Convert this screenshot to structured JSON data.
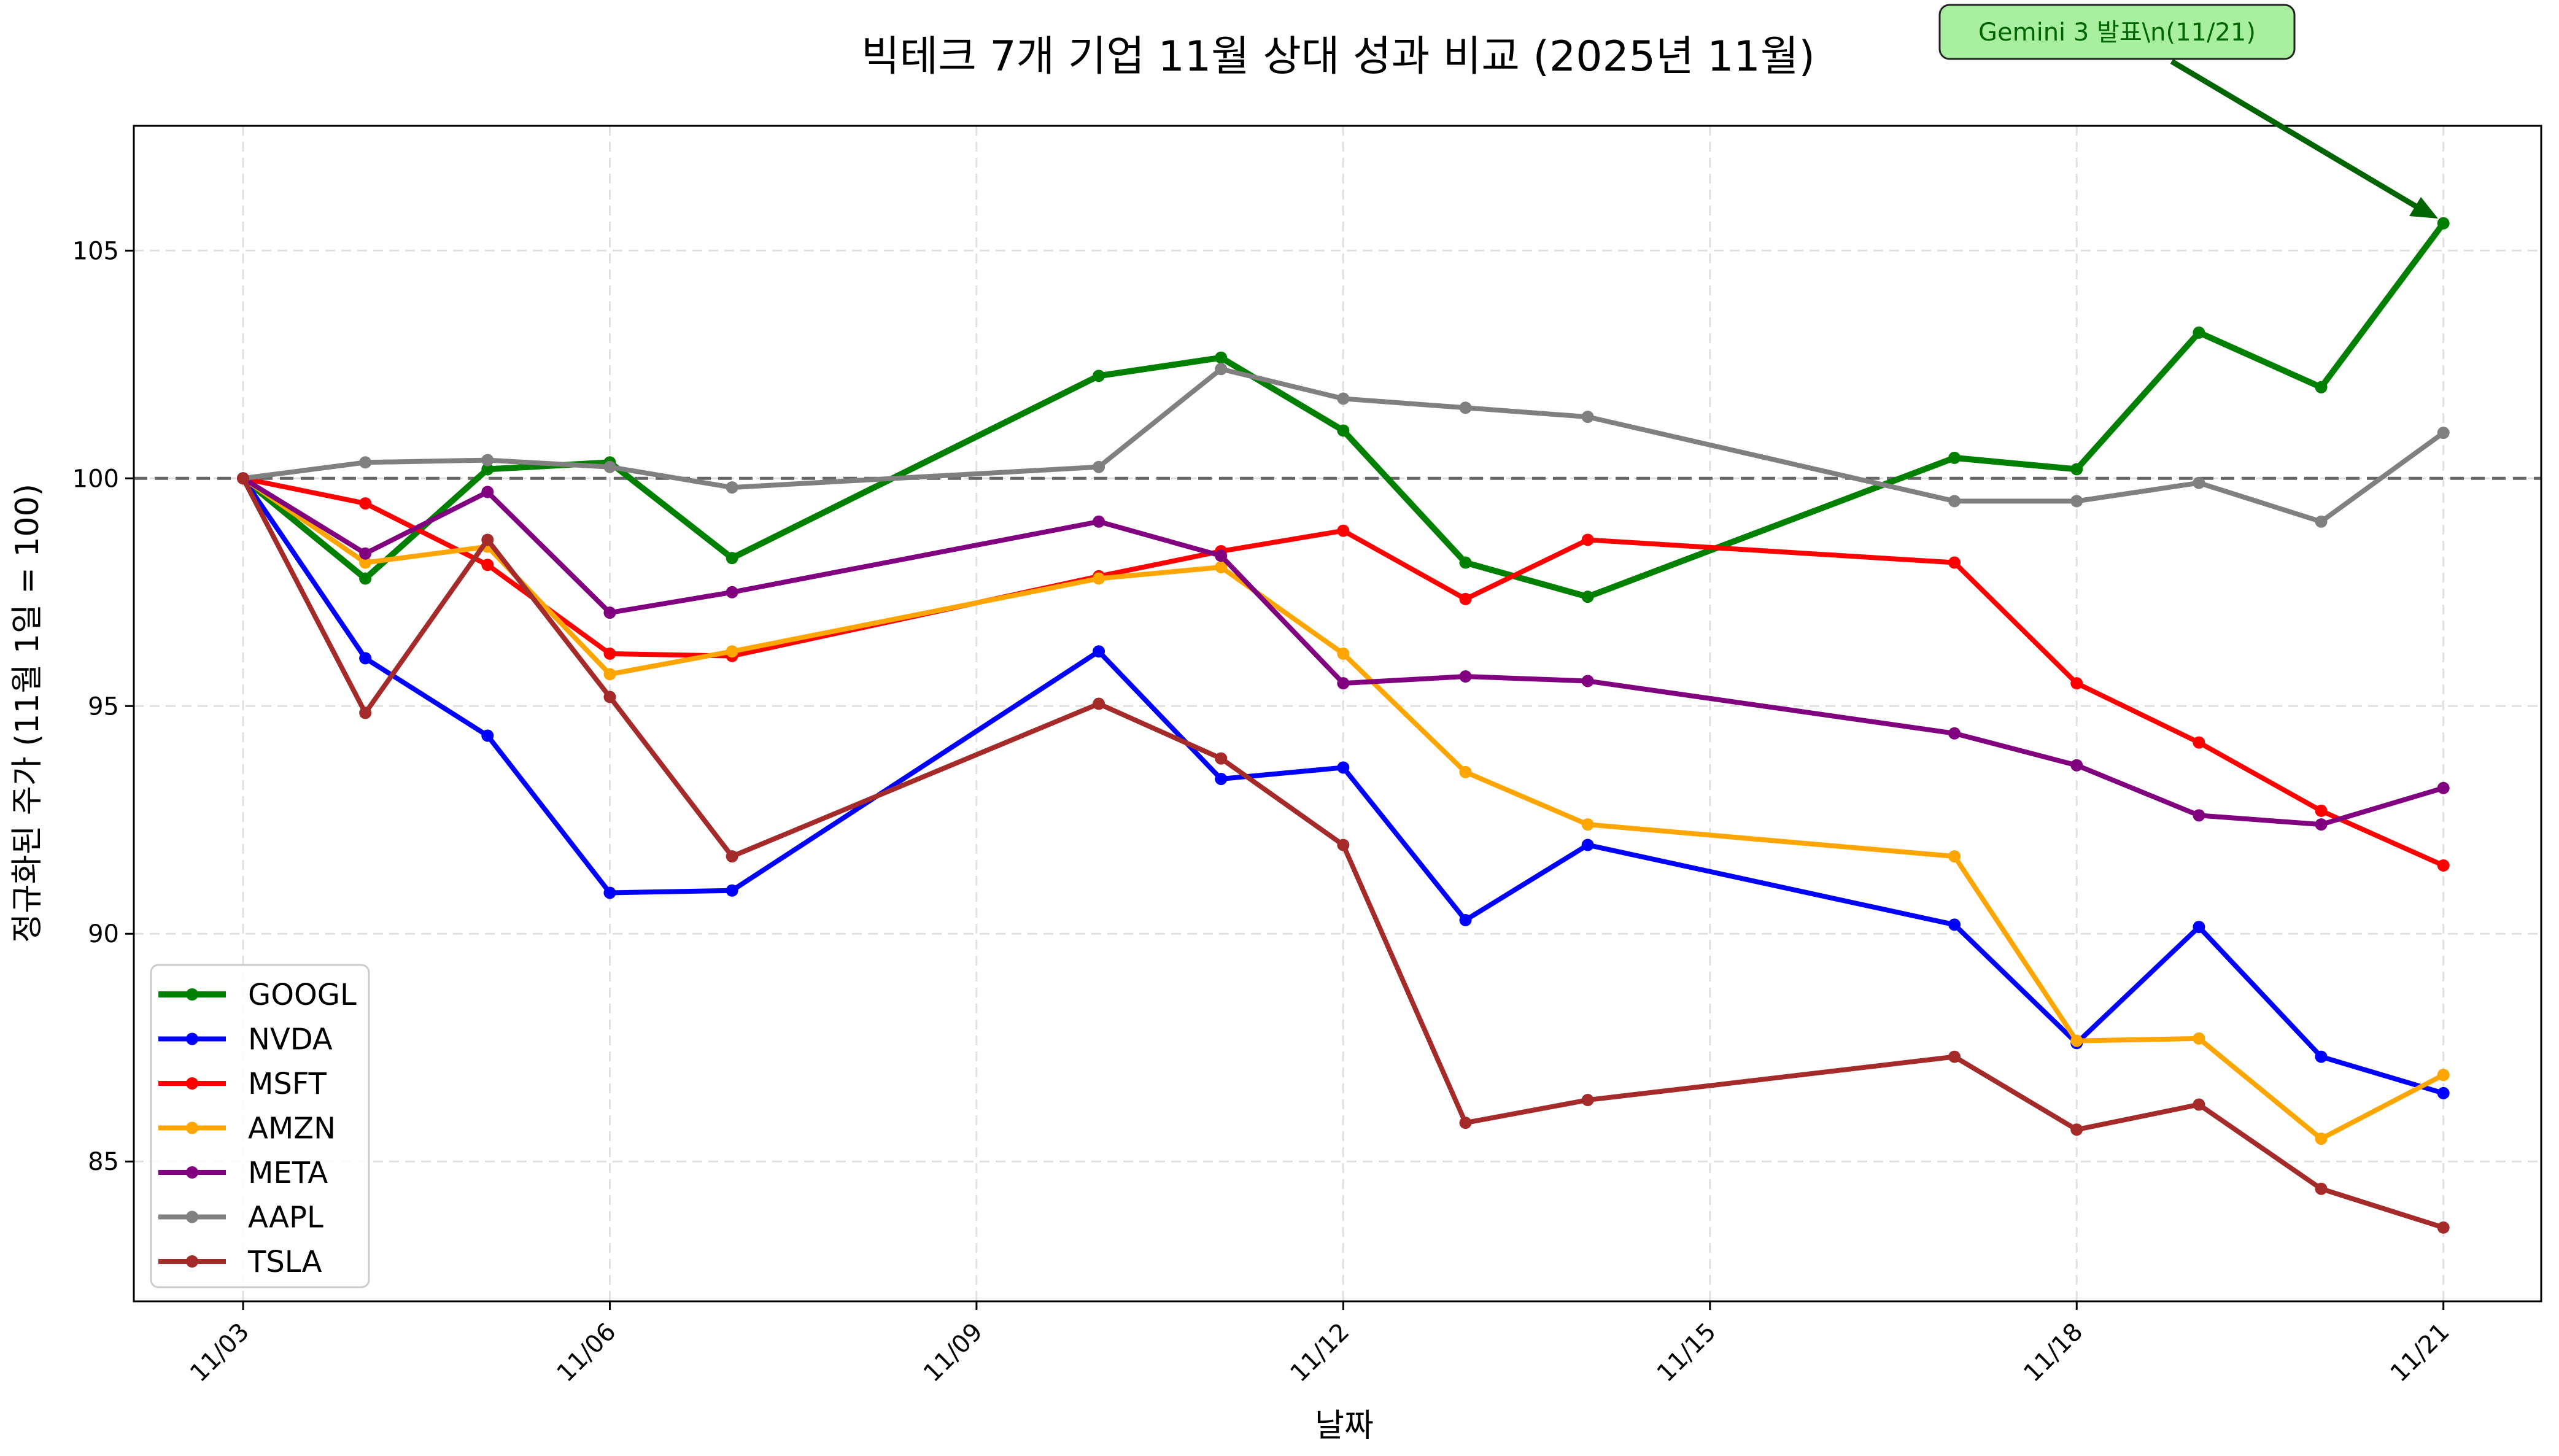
{
  "chart_data": {
    "type": "line",
    "title": "빅테크 7개 기업 11월 상대 성과 비교 (2025년 11월)",
    "xlabel": "날짜",
    "ylabel": "정규화된 주가 (11월 1일 = 100)",
    "x": [
      "11/03",
      "11/04",
      "11/05",
      "11/06",
      "11/07",
      "11/10",
      "11/11",
      "11/12",
      "11/13",
      "11/14",
      "11/17",
      "11/18",
      "11/19",
      "11/20",
      "11/21"
    ],
    "x_day": [
      3,
      4,
      5,
      6,
      7,
      10,
      11,
      12,
      13,
      14,
      17,
      18,
      19,
      20,
      21
    ],
    "xticks": [
      "11/03",
      "11/06",
      "11/09",
      "11/12",
      "11/15",
      "11/18",
      "11/21"
    ],
    "xtick_days": [
      3,
      6,
      9,
      12,
      15,
      18,
      21
    ],
    "yticks": [
      85,
      90,
      95,
      100,
      105
    ],
    "ylim": [
      81.93,
      107.74
    ],
    "xlim_days": [
      2.106,
      21.8
    ],
    "grid": true,
    "legend_position": "lower left",
    "reference_line": {
      "y": 100,
      "style": "dashed",
      "color": "#666666"
    },
    "series": [
      {
        "name": "GOOGL",
        "color": "#008000",
        "width": 10,
        "values": [
          100.0,
          97.8,
          100.2,
          100.35,
          98.25,
          102.25,
          102.65,
          101.05,
          98.15,
          97.4,
          100.45,
          100.2,
          103.2,
          102.0,
          105.6
        ]
      },
      {
        "name": "NVDA",
        "color": "#0000ff",
        "width": 8,
        "values": [
          100.0,
          96.05,
          94.35,
          90.9,
          90.95,
          96.2,
          93.4,
          93.65,
          90.3,
          91.95,
          90.2,
          87.6,
          90.15,
          87.3,
          86.5
        ]
      },
      {
        "name": "MSFT",
        "color": "#ff0000",
        "width": 8,
        "values": [
          100.0,
          99.45,
          98.1,
          96.15,
          96.1,
          97.85,
          98.4,
          98.85,
          97.35,
          98.65,
          98.15,
          95.5,
          94.2,
          92.7,
          91.5
        ]
      },
      {
        "name": "AMZN",
        "color": "#ffa500",
        "width": 8,
        "values": [
          100.0,
          98.15,
          98.5,
          95.7,
          96.2,
          97.8,
          98.05,
          96.15,
          93.55,
          92.4,
          91.7,
          87.65,
          87.7,
          85.5,
          86.9
        ]
      },
      {
        "name": "META",
        "color": "#800080",
        "width": 8,
        "values": [
          100.0,
          98.35,
          99.7,
          97.05,
          97.5,
          99.05,
          98.3,
          95.5,
          95.65,
          95.55,
          94.4,
          93.7,
          92.6,
          92.4,
          93.2
        ]
      },
      {
        "name": "AAPL",
        "color": "#808080",
        "width": 8,
        "values": [
          100.0,
          100.35,
          100.4,
          100.25,
          99.8,
          100.25,
          102.4,
          101.75,
          101.55,
          101.35,
          99.5,
          99.5,
          99.9,
          99.05,
          101.0
        ]
      },
      {
        "name": "TSLA",
        "color": "#a52a2a",
        "width": 8,
        "values": [
          100.0,
          94.85,
          98.65,
          95.2,
          91.7,
          95.05,
          93.85,
          91.95,
          85.85,
          86.35,
          87.3,
          85.7,
          86.25,
          84.4,
          83.55
        ]
      }
    ],
    "annotations": [
      {
        "text": "Gemini 3 발표\\n(11/21)",
        "target_x": "11/21",
        "target_y": 105.6,
        "box_color": "#a8f0a0",
        "text_color": "#006400",
        "arrow_color": "#006400"
      }
    ]
  },
  "header": {
    "title": "빅테크 7개 기업 11월 상대 성과 비교 (2025년 11월)"
  },
  "axes": {
    "xlabel": "날짜",
    "ylabel": "정규화된 주가 (11월 1일 = 100)"
  },
  "annotation": {
    "label": "Gemini 3 발표\\n(11/21)"
  }
}
